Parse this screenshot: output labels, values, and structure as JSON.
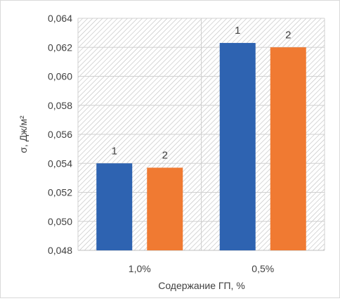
{
  "chart_data": {
    "type": "bar",
    "categories": [
      "1,0%",
      "0,5%"
    ],
    "series": [
      {
        "label": "1",
        "color": "#2e63b1",
        "values": [
          0.054,
          0.0623
        ]
      },
      {
        "label": "2",
        "color": "#f07a32",
        "values": [
          0.0537,
          0.062
        ]
      }
    ],
    "xlabel": "Содержание ГП, %",
    "ylabel": "σ, Дж/м²",
    "ylim": [
      0.048,
      0.064
    ],
    "yticks": [
      {
        "value": 0.048,
        "label": "0,048"
      },
      {
        "value": 0.05,
        "label": "0,050"
      },
      {
        "value": 0.052,
        "label": "0,052"
      },
      {
        "value": 0.054,
        "label": "0,054"
      },
      {
        "value": 0.056,
        "label": "0,056"
      },
      {
        "value": 0.058,
        "label": "0,058"
      },
      {
        "value": 0.06,
        "label": "0,060"
      },
      {
        "value": 0.062,
        "label": "0,062"
      },
      {
        "value": 0.064,
        "label": "0,064"
      }
    ],
    "grid": true,
    "plot_background": "hatched"
  }
}
